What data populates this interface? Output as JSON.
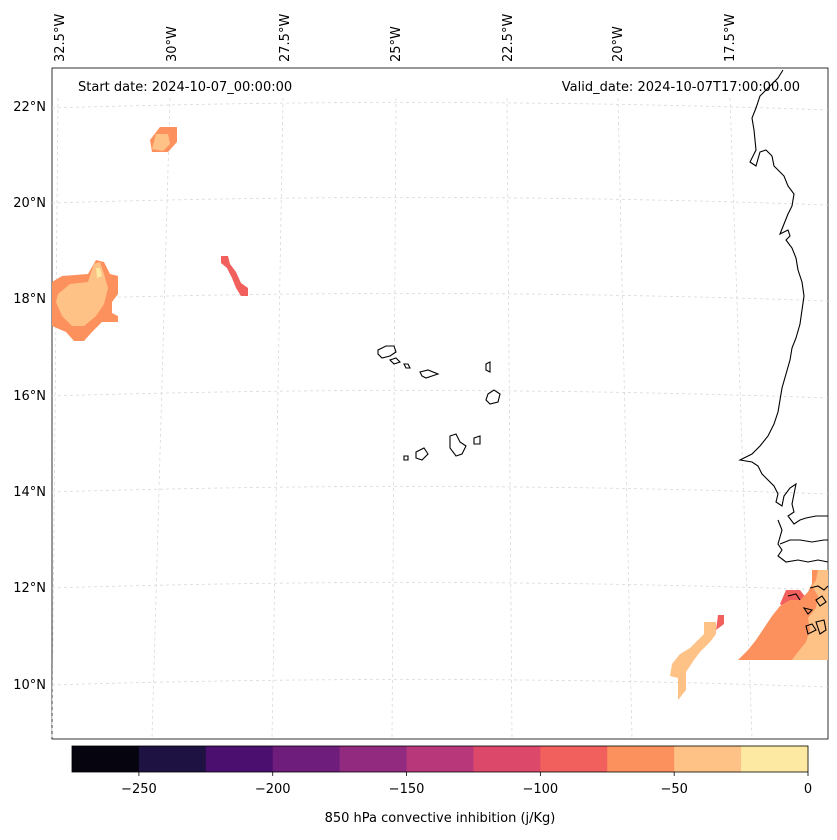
{
  "map": {
    "start_date": "Start date: 2024-10-07_00:00:00",
    "valid_date": "Valid_date: 2024-10-07T17:00:00.00",
    "lon_labels": [
      "32.5°W",
      "30°W",
      "27.5°W",
      "25°W",
      "22.5°W",
      "20°W",
      "17.5°W"
    ],
    "lat_labels": [
      "22°N",
      "20°N",
      "18°N",
      "16°N",
      "14°N",
      "12°N",
      "10°N"
    ]
  },
  "colorbar": {
    "label": "850 hPa convective inhibition (j/Kg)",
    "tick_labels": [
      "−250",
      "−200",
      "−150",
      "−100",
      "−50",
      "0"
    ],
    "levels": [
      -275,
      -250,
      -225,
      -200,
      -175,
      -150,
      -125,
      -100,
      -75,
      -50,
      -25,
      0
    ],
    "colors": [
      "#05040f",
      "#1e1242",
      "#4b0f70",
      "#6e1d7c",
      "#922b80",
      "#b7377a",
      "#dc4869",
      "#f1605d",
      "#fd915e",
      "#fec286",
      "#fde9a2"
    ]
  },
  "colors": {
    "coastline": "#000000",
    "gridline": "#d9d9d9"
  }
}
